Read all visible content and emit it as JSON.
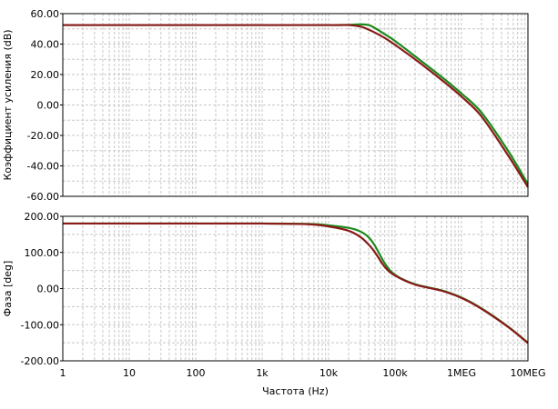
{
  "chart_data": [
    {
      "type": "line",
      "panel": "top",
      "xscale": "log",
      "xlim": [
        1,
        10000000
      ],
      "ylim": [
        -60,
        60
      ],
      "ylabel": "Коэффициент усиления (dB)",
      "xlabel": "",
      "grid": true,
      "yticks": [
        "60.00",
        "40.00",
        "20.00",
        "0.00",
        "-20.00",
        "-40.00",
        "-60.00"
      ],
      "series": [
        {
          "color": "#1a8a1a",
          "x": [
            1,
            10,
            100,
            1000,
            10000,
            20000,
            30000,
            40000,
            50000,
            70000,
            100000,
            200000,
            500000,
            1000000,
            2000000,
            5000000,
            10000000
          ],
          "y": [
            52.5,
            52.5,
            52.5,
            52.5,
            52.5,
            52.6,
            53.0,
            52.5,
            50.5,
            46.5,
            42.0,
            32.0,
            18.5,
            7.5,
            -5.0,
            -30.0,
            -52.0
          ]
        },
        {
          "color": "#8b1a1a",
          "x": [
            1,
            10,
            100,
            1000,
            10000,
            20000,
            30000,
            40000,
            50000,
            70000,
            100000,
            200000,
            500000,
            1000000,
            2000000,
            5000000,
            10000000
          ],
          "y": [
            52.5,
            52.5,
            52.5,
            52.5,
            52.5,
            52.5,
            51.5,
            49.5,
            47.5,
            44.0,
            39.5,
            30.0,
            16.5,
            5.5,
            -7.5,
            -33.0,
            -54.0
          ]
        }
      ]
    },
    {
      "type": "line",
      "panel": "bottom",
      "xscale": "log",
      "xlim": [
        1,
        10000000
      ],
      "ylim": [
        -200,
        200
      ],
      "ylabel": "Фаза [deg]",
      "xlabel": "Частота (Hz)",
      "grid": true,
      "yticks": [
        "200.00",
        "100.00",
        "0.00",
        "-100.00",
        "-200.00"
      ],
      "xticks": [
        "1",
        "10",
        "100",
        "1k",
        "10k",
        "100k",
        "1MEG",
        "10MEG"
      ],
      "series": [
        {
          "color": "#1a8a1a",
          "x": [
            1,
            10,
            100,
            1000,
            5000,
            10000,
            20000,
            30000,
            40000,
            50000,
            70000,
            100000,
            200000,
            500000,
            1000000,
            2000000,
            5000000,
            10000000
          ],
          "y": [
            180,
            180,
            180,
            180,
            179,
            175,
            168,
            158,
            142,
            118,
            70,
            38,
            12,
            -5,
            -25,
            -55,
            -105,
            -150
          ]
        },
        {
          "color": "#8b1a1a",
          "x": [
            1,
            10,
            100,
            1000,
            5000,
            10000,
            20000,
            30000,
            40000,
            50000,
            70000,
            100000,
            200000,
            500000,
            1000000,
            2000000,
            5000000,
            10000000
          ],
          "y": [
            180,
            180,
            180,
            180,
            178,
            172,
            160,
            143,
            122,
            100,
            60,
            36,
            11,
            -6,
            -26,
            -56,
            -106,
            -151
          ]
        }
      ]
    }
  ]
}
